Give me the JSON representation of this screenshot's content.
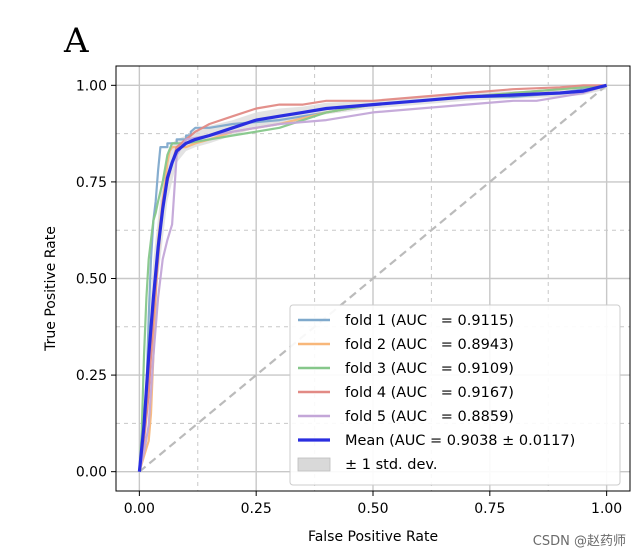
{
  "panel_label": "A",
  "watermark": "CSDN @赵药师",
  "chart_data": {
    "type": "line",
    "title": "",
    "xlabel": "False Positive Rate",
    "ylabel": "True Positive Rate",
    "xlim": [
      -0.05,
      1.05
    ],
    "ylim": [
      -0.05,
      1.05
    ],
    "xticks": [
      0.0,
      0.25,
      0.5,
      0.75,
      1.0
    ],
    "yticks": [
      0.0,
      0.25,
      0.5,
      0.75,
      1.0
    ],
    "xtick_labels": [
      "0.00",
      "0.25",
      "0.50",
      "0.75",
      "1.00"
    ],
    "ytick_labels": [
      "0.00",
      "0.25",
      "0.50",
      "0.75",
      "1.00"
    ],
    "major_grid": true,
    "minor_grid_dashed": [
      0.125,
      0.375,
      0.625,
      0.875
    ],
    "legend_position": "lower-right",
    "chance_line": {
      "x": [
        0,
        1
      ],
      "y": [
        0,
        1
      ],
      "color": "#bbbbbb",
      "style": "dashed"
    },
    "series": [
      {
        "name": "fold 1 (AUC   = 0.9115)",
        "color": "#7fa9cc",
        "x": [
          0,
          0.01,
          0.015,
          0.02,
          0.025,
          0.03,
          0.035,
          0.04,
          0.045,
          0.05,
          0.06,
          0.06,
          0.08,
          0.08,
          0.1,
          0.1,
          0.11,
          0.11,
          0.12,
          0.15,
          0.2,
          0.3,
          0.4,
          0.5,
          0.6,
          0.7,
          0.8,
          0.9,
          0.95,
          1.0
        ],
        "y": [
          0,
          0.1,
          0.2,
          0.4,
          0.55,
          0.65,
          0.7,
          0.78,
          0.84,
          0.84,
          0.84,
          0.85,
          0.85,
          0.86,
          0.86,
          0.87,
          0.87,
          0.88,
          0.89,
          0.89,
          0.9,
          0.91,
          0.93,
          0.95,
          0.96,
          0.97,
          0.97,
          0.98,
          0.99,
          1.0
        ]
      },
      {
        "name": "fold 2 (AUC   = 0.8943)",
        "color": "#f8b77a",
        "x": [
          0,
          0.01,
          0.02,
          0.025,
          0.03,
          0.035,
          0.04,
          0.045,
          0.05,
          0.055,
          0.06,
          0.065,
          0.07,
          0.1,
          0.12,
          0.15,
          0.2,
          0.3,
          0.4,
          0.5,
          0.6,
          0.7,
          0.8,
          0.9,
          0.95,
          1.0
        ],
        "y": [
          0,
          0.04,
          0.08,
          0.15,
          0.3,
          0.45,
          0.6,
          0.65,
          0.7,
          0.75,
          0.8,
          0.83,
          0.84,
          0.84,
          0.85,
          0.86,
          0.88,
          0.9,
          0.93,
          0.95,
          0.96,
          0.97,
          0.98,
          0.99,
          0.995,
          1.0
        ]
      },
      {
        "name": "fold 3 (AUC   = 0.9109)",
        "color": "#86c78a",
        "x": [
          0,
          0.005,
          0.01,
          0.015,
          0.02,
          0.025,
          0.03,
          0.035,
          0.04,
          0.05,
          0.06,
          0.07,
          0.1,
          0.15,
          0.2,
          0.25,
          0.3,
          0.4,
          0.5,
          0.6,
          0.7,
          0.8,
          0.9,
          0.95,
          1.0
        ],
        "y": [
          0,
          0.1,
          0.3,
          0.45,
          0.55,
          0.6,
          0.65,
          0.67,
          0.7,
          0.75,
          0.82,
          0.85,
          0.85,
          0.86,
          0.87,
          0.88,
          0.89,
          0.93,
          0.95,
          0.96,
          0.97,
          0.98,
          0.99,
          0.995,
          1.0
        ]
      },
      {
        "name": "fold 4 (AUC   = 0.9167)",
        "color": "#e28a85",
        "x": [
          0,
          0.01,
          0.02,
          0.03,
          0.04,
          0.05,
          0.06,
          0.07,
          0.08,
          0.1,
          0.12,
          0.15,
          0.2,
          0.25,
          0.3,
          0.35,
          0.4,
          0.5,
          0.6,
          0.7,
          0.8,
          0.9,
          0.95,
          1.0
        ],
        "y": [
          0,
          0.08,
          0.2,
          0.4,
          0.55,
          0.7,
          0.75,
          0.8,
          0.84,
          0.86,
          0.88,
          0.9,
          0.92,
          0.94,
          0.95,
          0.95,
          0.96,
          0.96,
          0.97,
          0.98,
          0.99,
          0.995,
          1.0,
          1.0
        ]
      },
      {
        "name": "fold 5 (AUC   = 0.8859)",
        "color": "#c3a6d8",
        "x": [
          0,
          0.01,
          0.02,
          0.03,
          0.04,
          0.05,
          0.06,
          0.07,
          0.08,
          0.09,
          0.1,
          0.15,
          0.2,
          0.25,
          0.3,
          0.4,
          0.5,
          0.6,
          0.7,
          0.8,
          0.85,
          0.9,
          0.95,
          1.0
        ],
        "y": [
          0,
          0.05,
          0.12,
          0.3,
          0.45,
          0.55,
          0.6,
          0.64,
          0.82,
          0.84,
          0.86,
          0.87,
          0.88,
          0.89,
          0.9,
          0.91,
          0.93,
          0.94,
          0.95,
          0.96,
          0.96,
          0.97,
          0.98,
          1.0
        ]
      },
      {
        "name": "Mean (AUC = 0.9038 ± 0.0117)",
        "color": "#2a2ee0",
        "x": [
          0,
          0.01,
          0.02,
          0.03,
          0.04,
          0.05,
          0.06,
          0.07,
          0.08,
          0.1,
          0.12,
          0.15,
          0.2,
          0.25,
          0.3,
          0.35,
          0.4,
          0.5,
          0.6,
          0.7,
          0.8,
          0.9,
          0.95,
          1.0
        ],
        "y": [
          0,
          0.12,
          0.3,
          0.45,
          0.58,
          0.68,
          0.76,
          0.8,
          0.83,
          0.85,
          0.86,
          0.87,
          0.89,
          0.91,
          0.92,
          0.93,
          0.94,
          0.95,
          0.96,
          0.97,
          0.975,
          0.98,
          0.985,
          1.0
        ]
      }
    ],
    "std_band": {
      "name": "± 1 std. dev.",
      "color": "#d9d9d9",
      "x": [
        0,
        0.01,
        0.02,
        0.03,
        0.04,
        0.05,
        0.06,
        0.07,
        0.08,
        0.1,
        0.12,
        0.15,
        0.2,
        0.25,
        0.3,
        0.35,
        0.4,
        0.5,
        0.6,
        0.7,
        0.8,
        0.9,
        0.95,
        1.0
      ],
      "upper": [
        0.03,
        0.18,
        0.38,
        0.55,
        0.66,
        0.76,
        0.82,
        0.85,
        0.86,
        0.87,
        0.885,
        0.895,
        0.91,
        0.93,
        0.94,
        0.945,
        0.955,
        0.96,
        0.97,
        0.98,
        0.985,
        0.99,
        0.995,
        1.0
      ],
      "lower": [
        0.0,
        0.06,
        0.22,
        0.35,
        0.5,
        0.6,
        0.7,
        0.75,
        0.8,
        0.83,
        0.84,
        0.85,
        0.87,
        0.89,
        0.9,
        0.915,
        0.925,
        0.94,
        0.95,
        0.96,
        0.965,
        0.97,
        0.975,
        0.99
      ]
    }
  }
}
